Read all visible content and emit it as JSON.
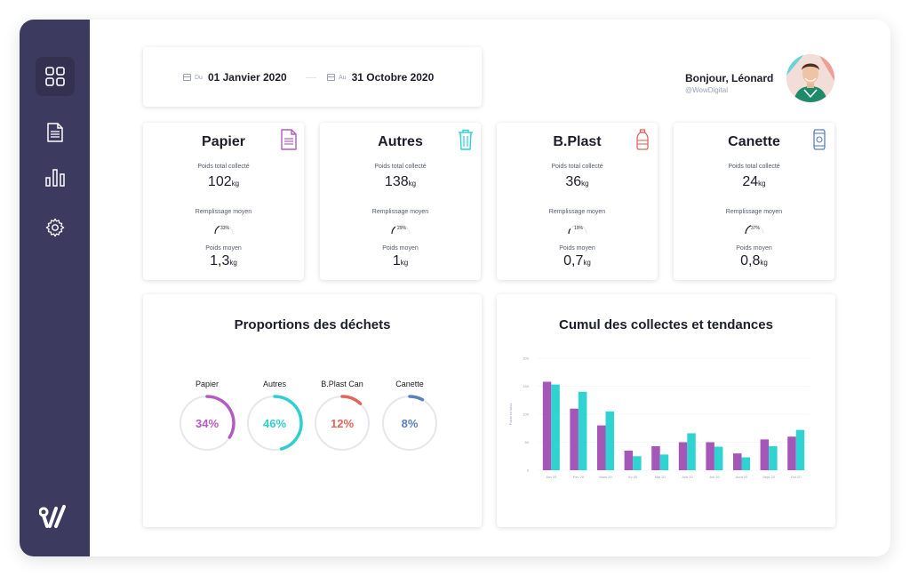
{
  "sidebar": {
    "items": [
      {
        "name": "dashboard",
        "icon": "grid-icon",
        "active": true
      },
      {
        "name": "reports",
        "icon": "document-icon",
        "active": false
      },
      {
        "name": "statistics",
        "icon": "bar-chart-icon",
        "active": false
      },
      {
        "name": "settings",
        "icon": "gear-icon",
        "active": false
      }
    ],
    "logo_icon": "brand-logo"
  },
  "date_range": {
    "from_prefix": "Du",
    "from_value": "01 Janvier 2020",
    "to_prefix": "Au",
    "to_value": "31 Octobre 2020"
  },
  "user": {
    "greeting": "Bonjour, Léonard",
    "handle": "@WowDigital"
  },
  "stats": [
    {
      "title": "Papier",
      "icon": "document-icon",
      "icon_color": "#b45bbf",
      "total_label": "Poids total collecté",
      "total_value": "102",
      "unit": "kg",
      "fill_label": "Remplissage moyen",
      "fill_value": "33%",
      "fill_fraction": 0.33,
      "avg_label": "Poids moyen",
      "avg_value": "1,3"
    },
    {
      "title": "Autres",
      "icon": "trash-icon",
      "icon_color": "#2fcfd0",
      "total_label": "Poids total collecté",
      "total_value": "138",
      "unit": "kg",
      "fill_label": "Remplissage moyen",
      "fill_value": "29%",
      "fill_fraction": 0.29,
      "avg_label": "Poids moyen",
      "avg_value": "1"
    },
    {
      "title": "B.Plast",
      "icon": "bottle-icon",
      "icon_color": "#e0645c",
      "total_label": "Poids total collecté",
      "total_value": "36",
      "unit": "kg",
      "fill_label": "Remplissage moyen",
      "fill_value": "19%",
      "fill_fraction": 0.19,
      "avg_label": "Poids moyen",
      "avg_value": "0,7"
    },
    {
      "title": "Canette",
      "icon": "can-icon",
      "icon_color": "#5b7fbf",
      "total_label": "Poids total collecté",
      "total_value": "24",
      "unit": "kg",
      "fill_label": "Remplissage moyen",
      "fill_value": "37%",
      "fill_fraction": 0.37,
      "avg_label": "Poids moyen",
      "avg_value": "0,8"
    }
  ],
  "proportions": {
    "title": "Proportions des déchets",
    "items": [
      {
        "label": "Papier",
        "value": "34%",
        "fraction": 0.34,
        "color": "#b45bbf"
      },
      {
        "label": "Autres",
        "value": "46%",
        "fraction": 0.46,
        "color": "#2fcfd0"
      },
      {
        "label": "B.Plast Can",
        "value": "12%",
        "fraction": 0.12,
        "color": "#e0645c"
      },
      {
        "label": "Canette",
        "value": "8%",
        "fraction": 0.08,
        "color": "#5b7fbf"
      }
    ]
  },
  "chart_data": {
    "type": "bar",
    "title": "Cumul des collectes et tendances",
    "ylabel": "Poids en kilos",
    "xlabel": "",
    "ylim": [
      0,
      200
    ],
    "yticks": [
      "0",
      "50",
      "100",
      "150",
      "200"
    ],
    "categories": [
      "Jan 20",
      "Fev 20",
      "Mars 20",
      "Av 20",
      "Mai 20",
      "Juin 20",
      "Juil 20",
      "Aout 20",
      "Sept 20",
      "Oct 20"
    ],
    "series": [
      {
        "color": "#a557b8",
        "values": [
          158,
          110,
          80,
          35,
          43,
          50,
          50,
          30,
          55,
          60
        ]
      },
      {
        "color": "#2fd3d1",
        "values": [
          153,
          140,
          105,
          25,
          28,
          66,
          42,
          23,
          43,
          72
        ]
      }
    ],
    "grid": true
  }
}
